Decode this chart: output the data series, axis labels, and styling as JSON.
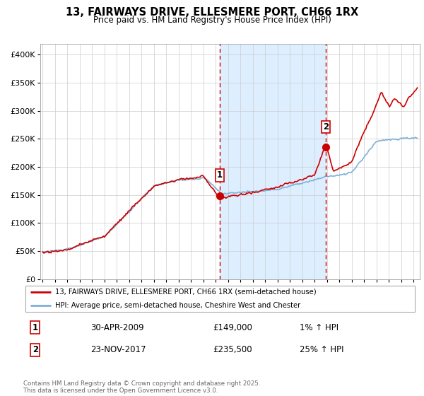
{
  "title": "13, FAIRWAYS DRIVE, ELLESMERE PORT, CH66 1RX",
  "subtitle": "Price paid vs. HM Land Registry's House Price Index (HPI)",
  "legend_line1": "13, FAIRWAYS DRIVE, ELLESMERE PORT, CH66 1RX (semi-detached house)",
  "legend_line2": "HPI: Average price, semi-detached house, Cheshire West and Chester",
  "footnote": "Contains HM Land Registry data © Crown copyright and database right 2025.\nThis data is licensed under the Open Government Licence v3.0.",
  "marker1_date": "30-APR-2009",
  "marker1_price": "£149,000",
  "marker1_hpi": "1% ↑ HPI",
  "marker1_x": 2009.33,
  "marker1_y": 149000,
  "marker2_date": "23-NOV-2017",
  "marker2_price": "£235,500",
  "marker2_hpi": "25% ↑ HPI",
  "marker2_x": 2017.9,
  "marker2_y": 235500,
  "shade_start": 2009.33,
  "shade_end": 2017.9,
  "ylim": [
    0,
    420000
  ],
  "xlim": [
    1994.8,
    2025.5
  ],
  "red_color": "#cc0000",
  "blue_color": "#7fb0d8",
  "shade_color": "#ddeeff",
  "grid_color": "#cccccc",
  "background_color": "#ffffff"
}
